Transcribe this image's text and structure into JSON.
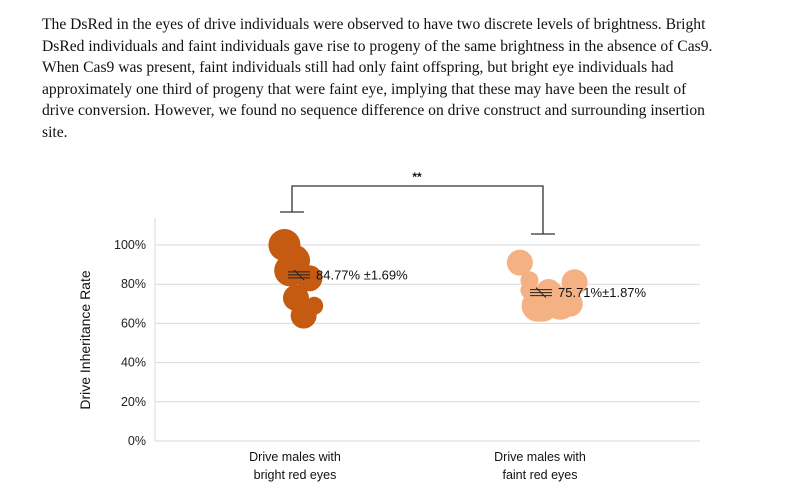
{
  "paragraph": {
    "lines": [
      "The DsRed in the eyes of drive individuals were observed to have two discrete levels of brightness. Bright",
      "DsRed individuals and faint individuals gave rise to progeny of the same brightness in the absence of Cas9.",
      "When Cas9 was present, faint individuals still had only faint offspring, but bright eye individuals had",
      "approximately one third of progeny that were faint eye, implying that these may have been the result of",
      "drive conversion. However, we found no sequence difference on drive construct and surrounding insertion",
      "site."
    ]
  },
  "chart_data": {
    "type": "scatter",
    "title": "",
    "xlabel": "",
    "ylabel": "Drive Inheritance Rate",
    "ylim": [
      0,
      100
    ],
    "yticks": [
      "0%",
      "20%",
      "40%",
      "60%",
      "80%",
      "100%"
    ],
    "ytick_values": [
      0,
      20,
      40,
      60,
      80,
      100
    ],
    "grid": true,
    "categories": [
      {
        "line1": "Drive males with",
        "line2": "bright red eyes"
      },
      {
        "line1": "Drive males with",
        "line2": "faint red eyes"
      }
    ],
    "series": [
      {
        "color": "#c55a11",
        "mean_value": 84.77,
        "mean_label": "84.77% ±1.69%",
        "points": [
          {
            "offset": -0.22,
            "y": 100,
            "size": 3
          },
          {
            "offset": -0.02,
            "y": 92,
            "size": 3
          },
          {
            "offset": -0.1,
            "y": 87,
            "size": 3
          },
          {
            "offset": 0.3,
            "y": 83,
            "size": 2
          },
          {
            "offset": 0.02,
            "y": 73,
            "size": 2
          },
          {
            "offset": 0.4,
            "y": 69,
            "size": 1
          },
          {
            "offset": 0.18,
            "y": 64,
            "size": 2
          }
        ]
      },
      {
        "color": "#f4b183",
        "mean_value": 75.71,
        "mean_label": "75.71%±1.87%",
        "points": [
          {
            "offset": -0.42,
            "y": 91,
            "size": 2
          },
          {
            "offset": -0.22,
            "y": 82,
            "size": 1
          },
          {
            "offset": -0.22,
            "y": 77,
            "size": 1
          },
          {
            "offset": 0.18,
            "y": 76,
            "size": 2
          },
          {
            "offset": 0.32,
            "y": 73,
            "size": 2
          },
          {
            "offset": 0.42,
            "y": 70,
            "size": 3
          },
          {
            "offset": 0.05,
            "y": 69,
            "size": 3
          },
          {
            "offset": -0.05,
            "y": 69,
            "size": 3
          },
          {
            "offset": 0.62,
            "y": 70,
            "size": 2
          },
          {
            "offset": 0.72,
            "y": 81,
            "size": 2
          },
          {
            "offset": 0.12,
            "y": 68,
            "size": 1
          }
        ]
      }
    ],
    "significance": "**"
  }
}
